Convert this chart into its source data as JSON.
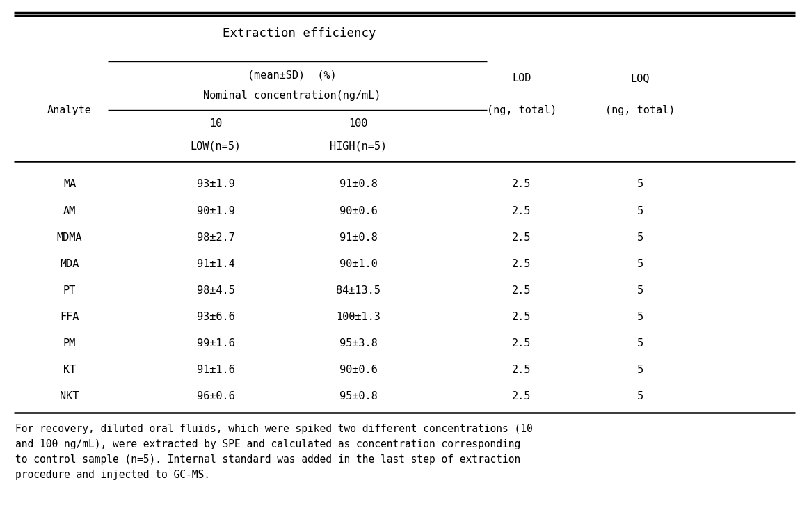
{
  "title": "Extraction efficiency",
  "subtitle1": "(mean±SD)  (%)",
  "subtitle2": "Nominal concentration(ng/mL)",
  "col_low_label": "10",
  "col_high_label": "100",
  "col_low_sub": "LOW(n=5)",
  "col_high_sub": "HIGH(n=5)",
  "col_lod": "LOD",
  "col_loq": "LOQ",
  "col_lod_sub": "(ng, total)",
  "col_loq_sub": "(ng, total)",
  "analyte_label": "Analyte",
  "analytes": [
    "MA",
    "AM",
    "MDMA",
    "MDA",
    "PT",
    "FFA",
    "PM",
    "KT",
    "NKT"
  ],
  "low_values": [
    "93±1.9",
    "90±1.9",
    "98±2.7",
    "91±1.4",
    "98±4.5",
    "93±6.6",
    "99±1.6",
    "91±1.6",
    "96±0.6"
  ],
  "high_values": [
    "91±0.8",
    "90±0.6",
    "91±0.8",
    "90±1.0",
    "84±13.5",
    "100±1.3",
    "95±3.8",
    "90±0.6",
    "95±0.8"
  ],
  "lod_values": [
    "2.5",
    "2.5",
    "2.5",
    "2.5",
    "2.5",
    "2.5",
    "2.5",
    "2.5",
    "2.5"
  ],
  "loq_values": [
    "5",
    "5",
    "5",
    "5",
    "5",
    "5",
    "5",
    "5",
    "5"
  ],
  "footnote_lines": [
    "For recovery, diluted oral fluids, which were spiked two different concentrations (10",
    "and 100 ng/mL), were extracted by SPE and calculated as concentration corresponding",
    "to control sample (n=5). Internal standard was added in the last step of extraction",
    "procedure and injected to GC-MS."
  ],
  "font_family": "DejaVu Sans Mono",
  "font_size_title": 12.5,
  "font_size_header": 11.0,
  "font_size_data": 11.0,
  "font_size_footnote": 10.5,
  "bg_color": "#ffffff",
  "text_color": "#000000",
  "line_color": "#000000"
}
